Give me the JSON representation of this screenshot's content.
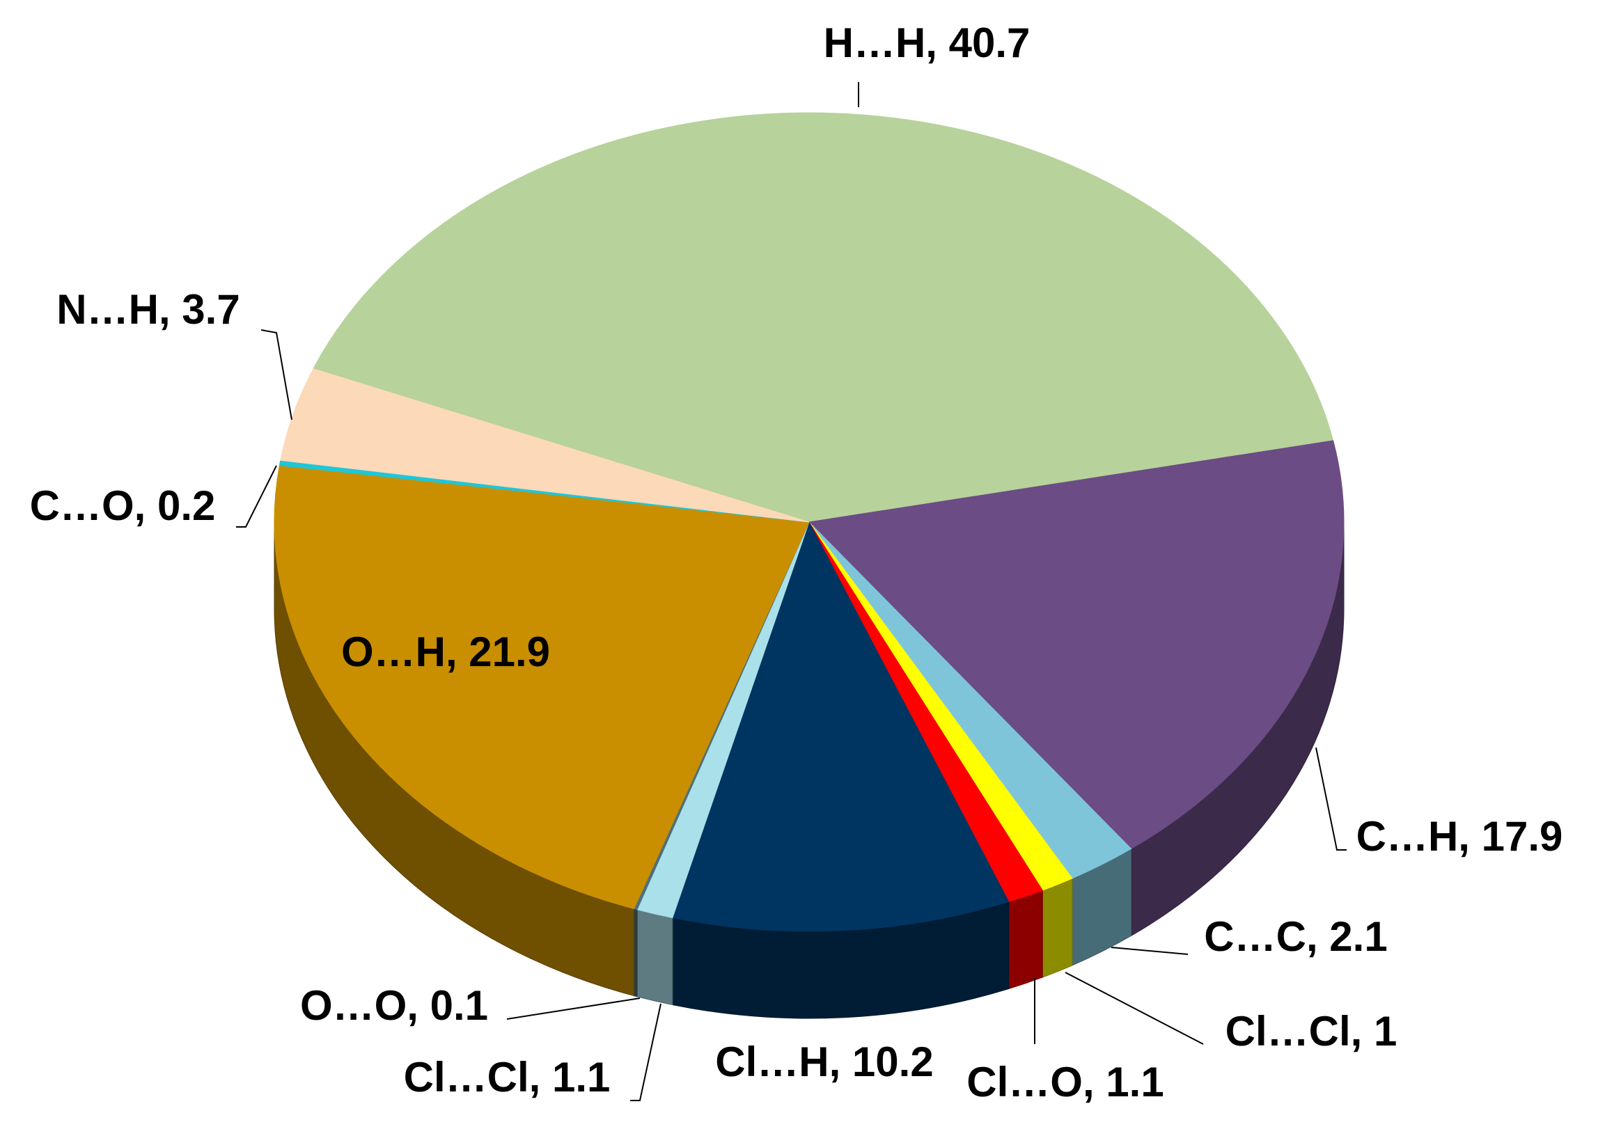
{
  "chart_data": {
    "type": "pie3d",
    "labels": [
      "H…H, 40.7",
      "C…H, 17.9",
      "C…C, 2.1",
      "Cl…Cl, 1",
      "Cl…O, 1.1",
      "Cl…H, 10.2",
      "Cl…Cl, 1.1",
      "O…O, 0.1",
      "O…H, 21.9",
      "C…O, 0.2",
      "N…H, 3.7"
    ],
    "values": [
      40.7,
      17.9,
      2.1,
      1,
      1.1,
      10.2,
      1.1,
      0.1,
      21.9,
      0.2,
      3.7
    ],
    "colors": [
      "#b7d29b",
      "#6b4c85",
      "#7fc5da",
      "#ffff00",
      "#ff0000",
      "#003461",
      "#a9e0ea",
      "#4f6f7a",
      "#c98f00",
      "#1fc6d8",
      "#fcd9b8"
    ]
  }
}
